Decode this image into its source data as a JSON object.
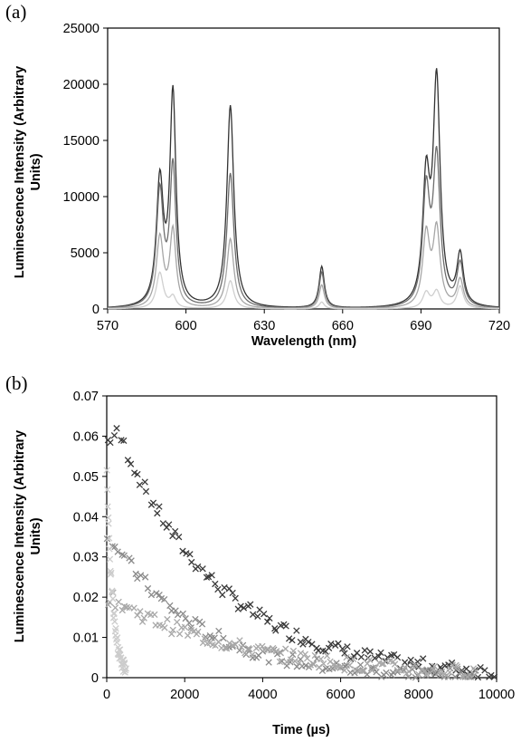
{
  "chart_data": [
    {
      "panel_label": "(a)",
      "type": "line",
      "xlabel": "Wavelength (nm)",
      "ylabel_lines": [
        "Luminescence Intensity (Arbitrary",
        "Units)"
      ],
      "xlim": [
        570,
        720
      ],
      "ylim": [
        0,
        25000
      ],
      "xticks": [
        "570",
        "600",
        "630",
        "660",
        "690",
        "720"
      ],
      "yticks": [
        "0",
        "5000",
        "10000",
        "15000",
        "20000",
        "25000"
      ],
      "grid": false,
      "peaks": [
        {
          "center": 590,
          "width": 1.6
        },
        {
          "center": 595,
          "width": 1.4
        },
        {
          "center": 617,
          "width": 1.6
        },
        {
          "center": 652,
          "width": 1.2
        },
        {
          "center": 692,
          "width": 1.6
        },
        {
          "center": 696,
          "width": 1.6
        },
        {
          "center": 705,
          "width": 1.5
        }
      ],
      "series": [
        {
          "color": "#333333",
          "peak_heights": [
            11000,
            18800,
            18000,
            3700,
            10800,
            19800,
            4500
          ]
        },
        {
          "color": "#6e6e6e",
          "peak_heights": [
            10200,
            12400,
            12000,
            3200,
            10000,
            13000,
            3800
          ]
        },
        {
          "color": "#a6a6a6",
          "peak_heights": [
            6200,
            6800,
            6200,
            2100,
            6400,
            6800,
            2500
          ]
        },
        {
          "color": "#cfcfcf",
          "peak_heights": [
            3200,
            1000,
            2500,
            600,
            1400,
            1500,
            2000
          ]
        }
      ]
    },
    {
      "panel_label": "(b)",
      "type": "scatter",
      "marker": "x",
      "xlabel": "Time (µs)",
      "ylabel_lines": [
        "Luminescence Intensity (Arbitrary",
        "Units)"
      ],
      "xlim": [
        0,
        10000
      ],
      "ylim": [
        0,
        0.07
      ],
      "xticks": [
        "0",
        "2000",
        "4000",
        "6000",
        "8000",
        "10000"
      ],
      "yticks": [
        "0",
        "0.01",
        "0.02",
        "0.03",
        "0.04",
        "0.05",
        "0.06",
        "0.07"
      ],
      "grid": false,
      "series": [
        {
          "color": "#3a3a3a",
          "amplitude": 0.061,
          "tau": 2600,
          "rise": 300,
          "xmax": 10000,
          "points": 120
        },
        {
          "color": "#8a8a8a",
          "amplitude": 0.035,
          "tau": 2200,
          "rise": 100,
          "xmax": 9500,
          "points": 110
        },
        {
          "color": "#a8a8a8",
          "amplitude": 0.02,
          "tau": 3500,
          "rise": 50,
          "xmax": 9500,
          "points": 130
        },
        {
          "color": "#cccccc",
          "amplitude": 0.052,
          "tau": 150,
          "rise": 0,
          "xmax": 500,
          "points": 45
        }
      ]
    }
  ]
}
